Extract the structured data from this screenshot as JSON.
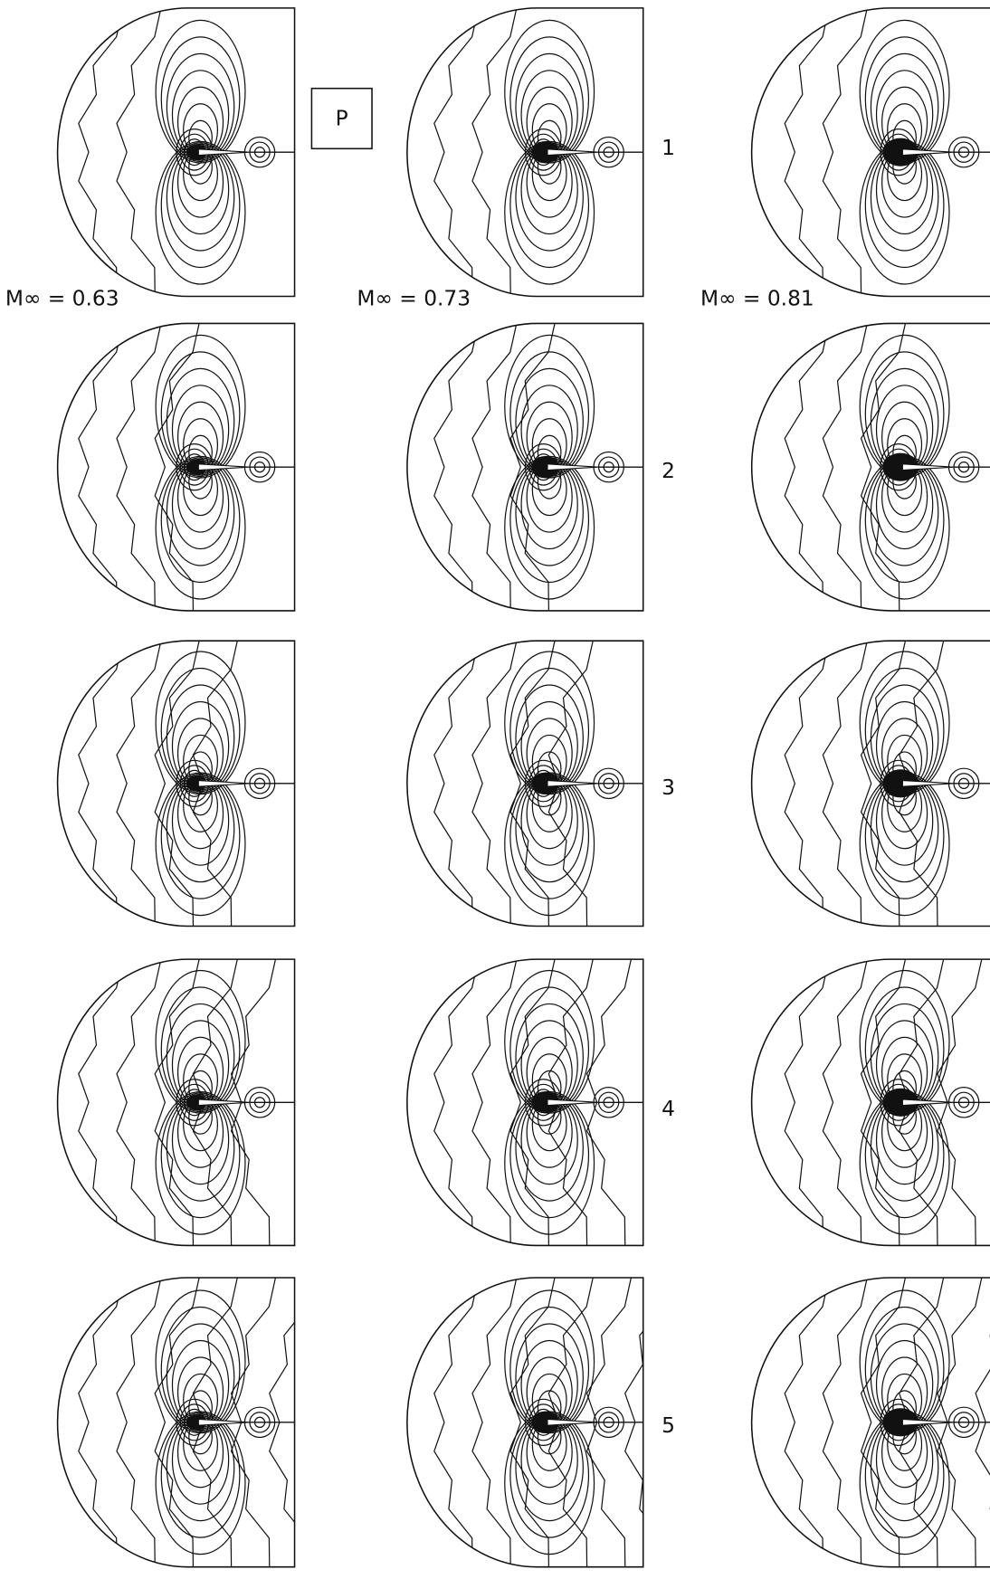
{
  "figure": {
    "pressure_label": "P",
    "row_labels": [
      "1",
      "2",
      "3",
      "4",
      "5"
    ],
    "mach_labels": [
      "M∞ = 0.63",
      "M∞ = 0.73",
      "M∞ = 0.81"
    ]
  }
}
